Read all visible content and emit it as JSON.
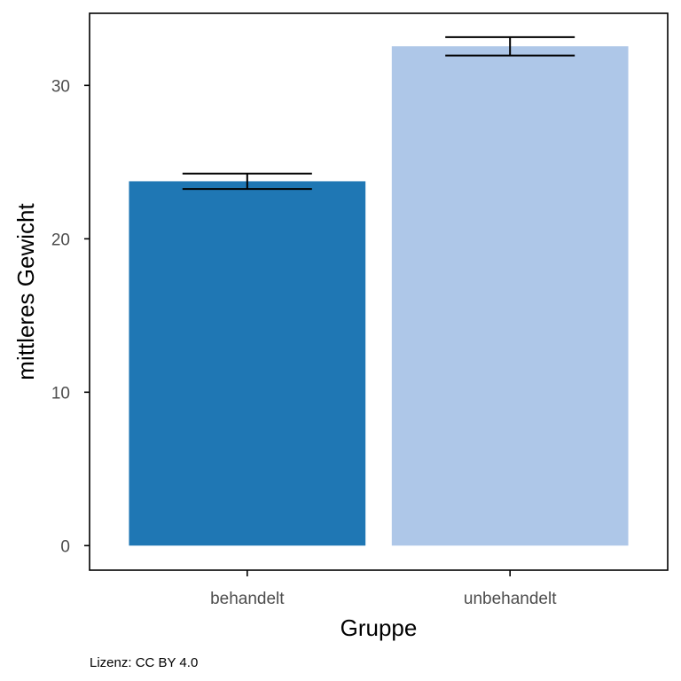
{
  "chart_data": {
    "type": "bar",
    "categories": [
      "behandelt",
      "unbehandelt"
    ],
    "values": [
      23.75,
      32.55
    ],
    "error_low": [
      23.25,
      31.95
    ],
    "error_high": [
      24.25,
      33.15
    ],
    "bar_colors": [
      "#1f77b4",
      "#aec7e8"
    ],
    "xlabel": "Gruppe",
    "ylabel": "mittleres Gewicht",
    "ylim": [
      -1.6,
      34.7
    ],
    "yticks": [
      0,
      10,
      20,
      30
    ],
    "grid": false,
    "legend": "none"
  },
  "caption": "Lizenz: CC BY 4.0"
}
